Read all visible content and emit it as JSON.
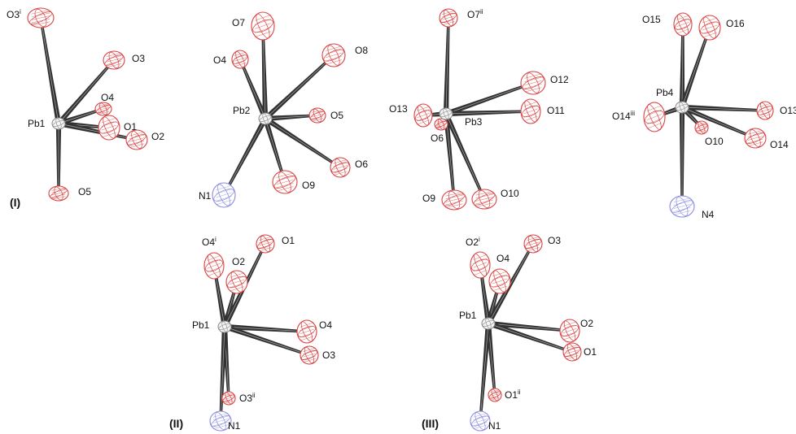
{
  "figure": {
    "panels": [
      {
        "label": "(I)",
        "center": "Pb1",
        "ligands": [
          {
            "label": "O3",
            "sup": "i",
            "element": "O"
          },
          {
            "label": "O3",
            "sup": "",
            "element": "O"
          },
          {
            "label": "O4",
            "sup": "",
            "element": "O"
          },
          {
            "label": "O1",
            "sup": "",
            "element": "O"
          },
          {
            "label": "O2",
            "sup": "",
            "element": "O"
          },
          {
            "label": "O5",
            "sup": "",
            "element": "O"
          }
        ]
      },
      {
        "label": "",
        "center": "Pb2",
        "ligands": [
          {
            "label": "O7",
            "sup": "",
            "element": "O"
          },
          {
            "label": "O4",
            "sup": "",
            "element": "O"
          },
          {
            "label": "O8",
            "sup": "",
            "element": "O"
          },
          {
            "label": "O5",
            "sup": "",
            "element": "O"
          },
          {
            "label": "O6",
            "sup": "",
            "element": "O"
          },
          {
            "label": "O9",
            "sup": "",
            "element": "O"
          },
          {
            "label": "N1",
            "sup": "",
            "element": "N"
          }
        ]
      },
      {
        "label": "",
        "center": "Pb3",
        "ligands": [
          {
            "label": "O7",
            "sup": "ii",
            "element": "O"
          },
          {
            "label": "O12",
            "sup": "",
            "element": "O"
          },
          {
            "label": "O11",
            "sup": "",
            "element": "O"
          },
          {
            "label": "O13",
            "sup": "",
            "element": "O"
          },
          {
            "label": "O6",
            "sup": "",
            "element": "O"
          },
          {
            "label": "O9",
            "sup": "",
            "element": "O"
          },
          {
            "label": "O10",
            "sup": "",
            "element": "O"
          }
        ]
      },
      {
        "label": "",
        "center": "Pb4",
        "ligands": [
          {
            "label": "O15",
            "sup": "",
            "element": "O"
          },
          {
            "label": "O16",
            "sup": "",
            "element": "O"
          },
          {
            "label": "O14",
            "sup": "iii",
            "element": "O"
          },
          {
            "label": "O13",
            "sup": "",
            "element": "O"
          },
          {
            "label": "O10",
            "sup": "",
            "element": "O"
          },
          {
            "label": "O14",
            "sup": "",
            "element": "O"
          },
          {
            "label": "N4",
            "sup": "",
            "element": "N"
          }
        ]
      },
      {
        "label": "(II)",
        "center": "Pb1",
        "ligands": [
          {
            "label": "O4",
            "sup": "i",
            "element": "O"
          },
          {
            "label": "O2",
            "sup": "",
            "element": "O"
          },
          {
            "label": "O1",
            "sup": "",
            "element": "O"
          },
          {
            "label": "O4",
            "sup": "",
            "element": "O"
          },
          {
            "label": "O3",
            "sup": "",
            "element": "O"
          },
          {
            "label": "O3",
            "sup": "ii",
            "element": "O"
          },
          {
            "label": "N1",
            "sup": "",
            "element": "N"
          }
        ]
      },
      {
        "label": "(III)",
        "center": "Pb1",
        "ligands": [
          {
            "label": "O2",
            "sup": "i",
            "element": "O"
          },
          {
            "label": "O4",
            "sup": "",
            "element": "O"
          },
          {
            "label": "O3",
            "sup": "",
            "element": "O"
          },
          {
            "label": "O2",
            "sup": "",
            "element": "O"
          },
          {
            "label": "O1",
            "sup": "",
            "element": "O"
          },
          {
            "label": "O1",
            "sup": "ii",
            "element": "O"
          },
          {
            "label": "N1",
            "sup": "",
            "element": "N"
          }
        ]
      }
    ],
    "colors": {
      "oxygen": "#d84040",
      "nitrogen": "#8a8ae0",
      "lead": "#888888",
      "bond": "#333333"
    }
  }
}
